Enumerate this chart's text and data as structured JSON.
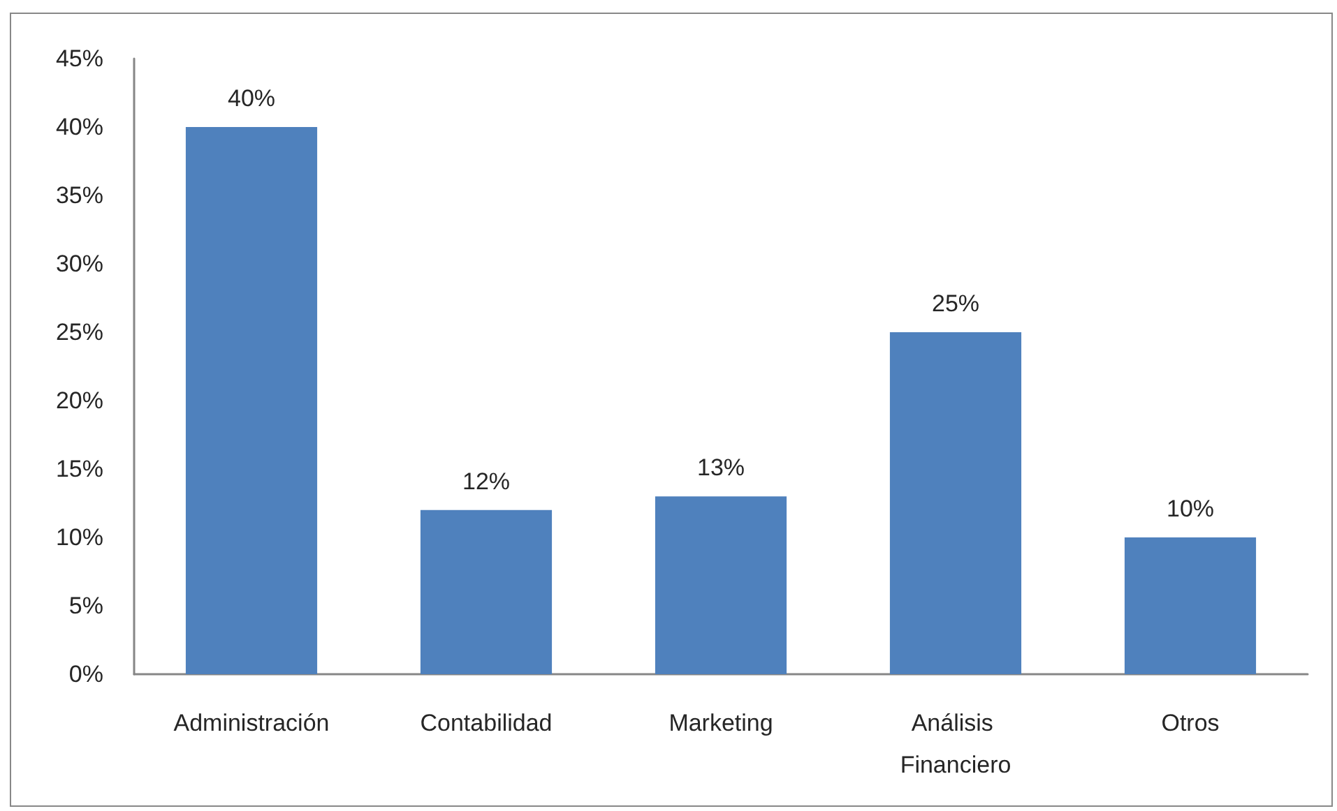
{
  "chart_data": {
    "type": "bar",
    "categories": [
      "Administración",
      "Contabilidad",
      "Marketing",
      "Análisis Financiero",
      "Otros"
    ],
    "values": [
      40,
      12,
      13,
      25,
      10
    ],
    "value_labels": [
      "40%",
      "12%",
      "13%",
      "25%",
      "10%"
    ],
    "color": "#4f81bd",
    "ylim": [
      0,
      45
    ],
    "yticks": [
      {
        "value": 0,
        "label": "0%"
      },
      {
        "value": 5,
        "label": "5%"
      },
      {
        "value": 10,
        "label": "10%"
      },
      {
        "value": 15,
        "label": "15%"
      },
      {
        "value": 20,
        "label": "20%"
      },
      {
        "value": 25,
        "label": "25%"
      },
      {
        "value": 30,
        "label": "30%"
      },
      {
        "value": 35,
        "label": "35%"
      },
      {
        "value": 40,
        "label": "40%"
      },
      {
        "value": 45,
        "label": "45%"
      }
    ],
    "grid": false
  }
}
